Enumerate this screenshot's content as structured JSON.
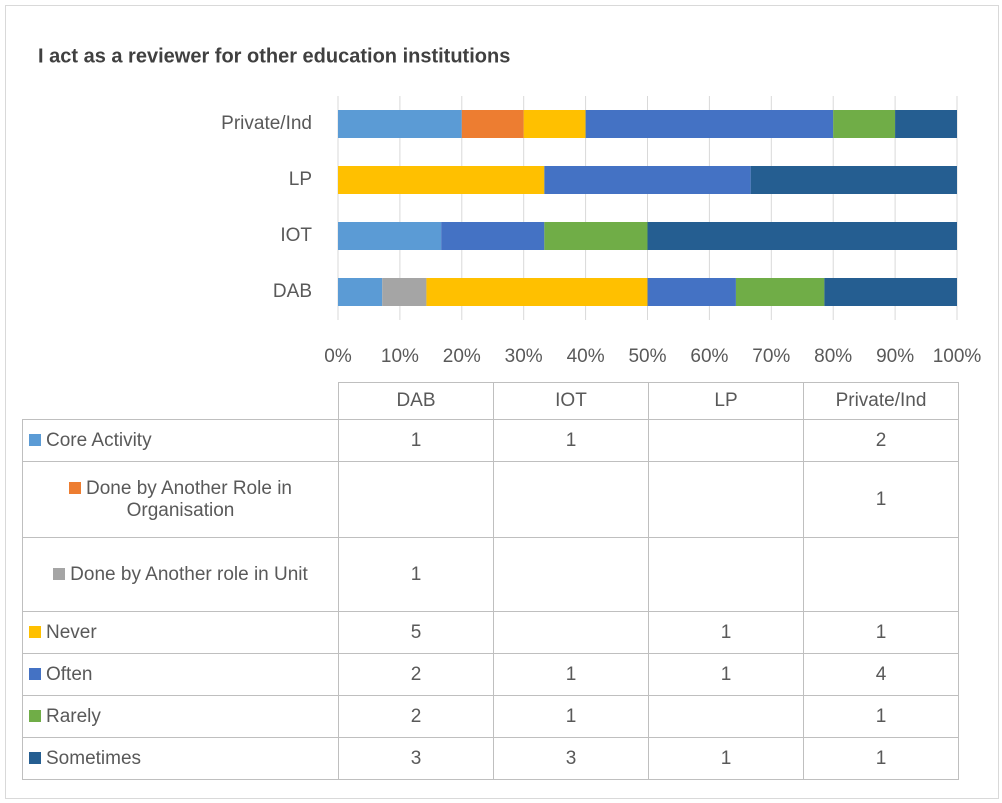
{
  "chart_data": {
    "type": "bar",
    "orientation": "horizontal",
    "stacking": "percent",
    "title": "I act as a reviewer for other education institutions",
    "categories": [
      "DAB",
      "IOT",
      "LP",
      "Private/Ind"
    ],
    "series": [
      {
        "name": "Core Activity",
        "color": "#5b9bd5",
        "values": [
          1,
          1,
          null,
          2
        ]
      },
      {
        "name": "Done by Another Role in Organisation",
        "color": "#ed7d31",
        "values": [
          null,
          null,
          null,
          1
        ]
      },
      {
        "name": "Done by Another role in Unit",
        "color": "#a5a5a5",
        "values": [
          1,
          null,
          null,
          null
        ]
      },
      {
        "name": "Never",
        "color": "#ffc000",
        "values": [
          5,
          null,
          1,
          1
        ]
      },
      {
        "name": "Often",
        "color": "#4472c4",
        "values": [
          2,
          1,
          1,
          4
        ]
      },
      {
        "name": "Rarely",
        "color": "#70ad47",
        "values": [
          2,
          1,
          null,
          1
        ]
      },
      {
        "name": "Sometimes",
        "color": "#255e91",
        "values": [
          3,
          3,
          1,
          1
        ]
      }
    ],
    "xlim": [
      0,
      100
    ],
    "xticks": [
      {
        "value": 0,
        "label": "0%"
      },
      {
        "value": 10,
        "label": "10%"
      },
      {
        "value": 20,
        "label": "20%"
      },
      {
        "value": 30,
        "label": "30%"
      },
      {
        "value": 40,
        "label": "40%"
      },
      {
        "value": 50,
        "label": "50%"
      },
      {
        "value": 60,
        "label": "60%"
      },
      {
        "value": 70,
        "label": "70%"
      },
      {
        "value": 80,
        "label": "80%"
      },
      {
        "value": 90,
        "label": "90%"
      },
      {
        "value": 100,
        "label": "100%"
      }
    ],
    "grid": true,
    "data_table": true
  }
}
